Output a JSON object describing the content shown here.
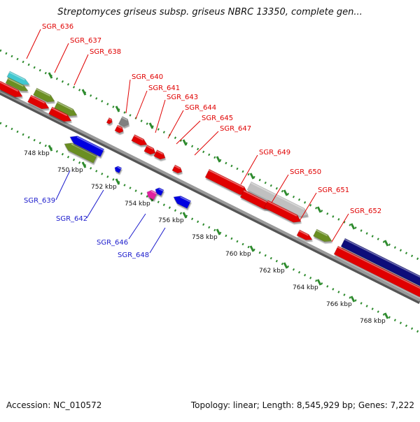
{
  "title": "Streptomyces griseus subsp. griseus NBRC 13350, complete gen...",
  "footer": {
    "accession": "Accession: NC_010572",
    "topology": "Topology: linear; Length: 8,545,929 bp; Genes: 7,222"
  },
  "colors": {
    "forward_label": "#e00000",
    "reverse_label": "#1a1acc",
    "tick": "#2e8b2e",
    "axis": "#9a9a9a"
  },
  "ticks": [
    "748 kbp",
    "750 kbp",
    "752 kbp",
    "754 kbp",
    "756 kbp",
    "758 kbp",
    "760 kbp",
    "762 kbp",
    "764 kbp",
    "766 kbp",
    "768 kbp"
  ],
  "genes": [
    {
      "id": "SGR_636",
      "strand": "forward",
      "color": "#40c8d0"
    },
    {
      "id": "SGR_637",
      "strand": "forward",
      "color": "#6b8e23"
    },
    {
      "id": "SGR_638",
      "strand": "forward",
      "color": "#6b8e23"
    },
    {
      "id": "SGR_639",
      "strand": "reverse",
      "color": "#6b8e23"
    },
    {
      "id": "SGR_640",
      "strand": "forward",
      "color": "#808080"
    },
    {
      "id": "SGR_641",
      "strand": "forward",
      "color": "#e00000"
    },
    {
      "id": "SGR_642",
      "strand": "reverse",
      "color": "#0000e0"
    },
    {
      "id": "SGR_643",
      "strand": "forward",
      "color": "#e00000"
    },
    {
      "id": "SGR_644",
      "strand": "forward",
      "color": "#e00000"
    },
    {
      "id": "SGR_645",
      "strand": "forward",
      "color": "#e00000"
    },
    {
      "id": "SGR_646",
      "strand": "reverse",
      "color": "#e020a0"
    },
    {
      "id": "SGR_647",
      "strand": "forward",
      "color": "#e00000"
    },
    {
      "id": "SGR_648",
      "strand": "reverse",
      "color": "#0000e0"
    },
    {
      "id": "SGR_649",
      "strand": "forward",
      "color": "#e00000"
    },
    {
      "id": "SGR_650",
      "strand": "forward",
      "color": "#c0c0c0"
    },
    {
      "id": "SGR_651",
      "strand": "forward",
      "color": "#e00000"
    },
    {
      "id": "SGR_652",
      "strand": "forward",
      "color": "#6b8e23"
    }
  ]
}
